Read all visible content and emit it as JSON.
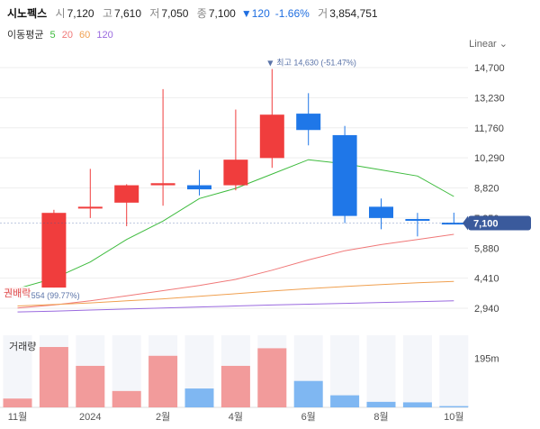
{
  "stock": {
    "name": "시노펙스",
    "open_label": "시",
    "open": "7,120",
    "high_label": "고",
    "high": "7,610",
    "low_label": "저",
    "low": "7,050",
    "close_label": "종",
    "close": "7,100",
    "change_arrow": "▼",
    "change": "120",
    "change_pct": "-1.66%",
    "volume_label": "거",
    "volume": "3,854,751"
  },
  "ma_legend": {
    "title": "이동평균",
    "periods": [
      {
        "label": "5",
        "color": "#3dbb3d"
      },
      {
        "label": "20",
        "color": "#f07878"
      },
      {
        "label": "60",
        "color": "#f0a050"
      },
      {
        "label": "120",
        "color": "#9a6adf"
      }
    ]
  },
  "scale_button": "Linear",
  "volume_panel_label": "거래량",
  "colors": {
    "up": "#f03d3d",
    "down": "#1f77e8",
    "vol_up": "#f29b9b",
    "vol_down": "#7fb7f2",
    "ma5": "#3dbb3d",
    "ma20": "#f07878",
    "ma60": "#f0a050",
    "ma120": "#9a6adf",
    "current_badge": "#3a5a9c"
  },
  "chart_data": {
    "type": "candlestick",
    "interval": "monthly",
    "y_ticks": [
      "14,700",
      "13,230",
      "11,760",
      "10,290",
      "8,820",
      "7,350",
      "5,880",
      "4,410",
      "2,940"
    ],
    "ylim": [
      2940,
      14700
    ],
    "x_tick_labels": [
      {
        "index": 0,
        "label": "11월"
      },
      {
        "index": 2,
        "label": "2024"
      },
      {
        "index": 4,
        "label": "2월"
      },
      {
        "index": 6,
        "label": "4월"
      },
      {
        "index": 8,
        "label": "6월"
      },
      {
        "index": 10,
        "label": "8월"
      },
      {
        "index": 12,
        "label": "10월"
      }
    ],
    "candles": [
      {
        "open": 3720,
        "high": 3950,
        "low": 3554,
        "close": 3950
      },
      {
        "open": 3950,
        "high": 7750,
        "low": 3950,
        "close": 7600
      },
      {
        "open": 7850,
        "high": 9750,
        "low": 7350,
        "close": 7900
      },
      {
        "open": 8100,
        "high": 9000,
        "low": 6950,
        "close": 8950
      },
      {
        "open": 8950,
        "high": 13650,
        "low": 7950,
        "close": 9050
      },
      {
        "open": 8950,
        "high": 9700,
        "low": 8450,
        "close": 8750
      },
      {
        "open": 8950,
        "high": 12650,
        "low": 8700,
        "close": 10200
      },
      {
        "open": 10280,
        "high": 14630,
        "low": 9800,
        "close": 12400
      },
      {
        "open": 12450,
        "high": 13450,
        "low": 10900,
        "close": 11650
      },
      {
        "open": 11400,
        "high": 11850,
        "low": 7100,
        "close": 7450
      },
      {
        "open": 7900,
        "high": 8300,
        "low": 6800,
        "close": 7350
      },
      {
        "open": 7300,
        "high": 7600,
        "low": 6450,
        "close": 7250
      },
      {
        "open": 7120,
        "high": 7610,
        "low": 7050,
        "close": 7100
      }
    ],
    "moving_averages": [
      {
        "name": "5",
        "start_index": 0,
        "values": [
          3900,
          4400,
          5200,
          6300,
          7200,
          8300,
          8800,
          9500,
          10200,
          10000,
          9700,
          9400,
          8400
        ]
      },
      {
        "name": "20",
        "start_index": 0,
        "values": [
          2950,
          3100,
          3300,
          3550,
          3800,
          4050,
          4350,
          4800,
          5300,
          5750,
          6050,
          6300,
          6550
        ]
      },
      {
        "name": "60",
        "start_index": 0,
        "values": [
          3050,
          3120,
          3200,
          3300,
          3400,
          3520,
          3650,
          3780,
          3900,
          4000,
          4100,
          4180,
          4250
        ]
      },
      {
        "name": "120",
        "start_index": 0,
        "values": [
          2760,
          2800,
          2850,
          2900,
          2950,
          3000,
          3050,
          3100,
          3140,
          3180,
          3220,
          3260,
          3300
        ]
      }
    ],
    "annotations": {
      "max": {
        "index": 7,
        "value": 14630,
        "arrow": "▼",
        "text": "최고 14,630 (-51.47%)"
      },
      "min": {
        "index": 0,
        "value": 3554,
        "text": "최저 3,554 (99.77%)"
      },
      "min_cover_text": "권배락",
      "current": {
        "value": 7100,
        "text": "7,100"
      }
    },
    "volume": {
      "tick_label": "195m",
      "tick_value": 195000000,
      "values": [
        35000000,
        240000000,
        165000000,
        65000000,
        205000000,
        75000000,
        165000000,
        235000000,
        105000000,
        48000000,
        22000000,
        20000000,
        5000000
      ]
    }
  }
}
